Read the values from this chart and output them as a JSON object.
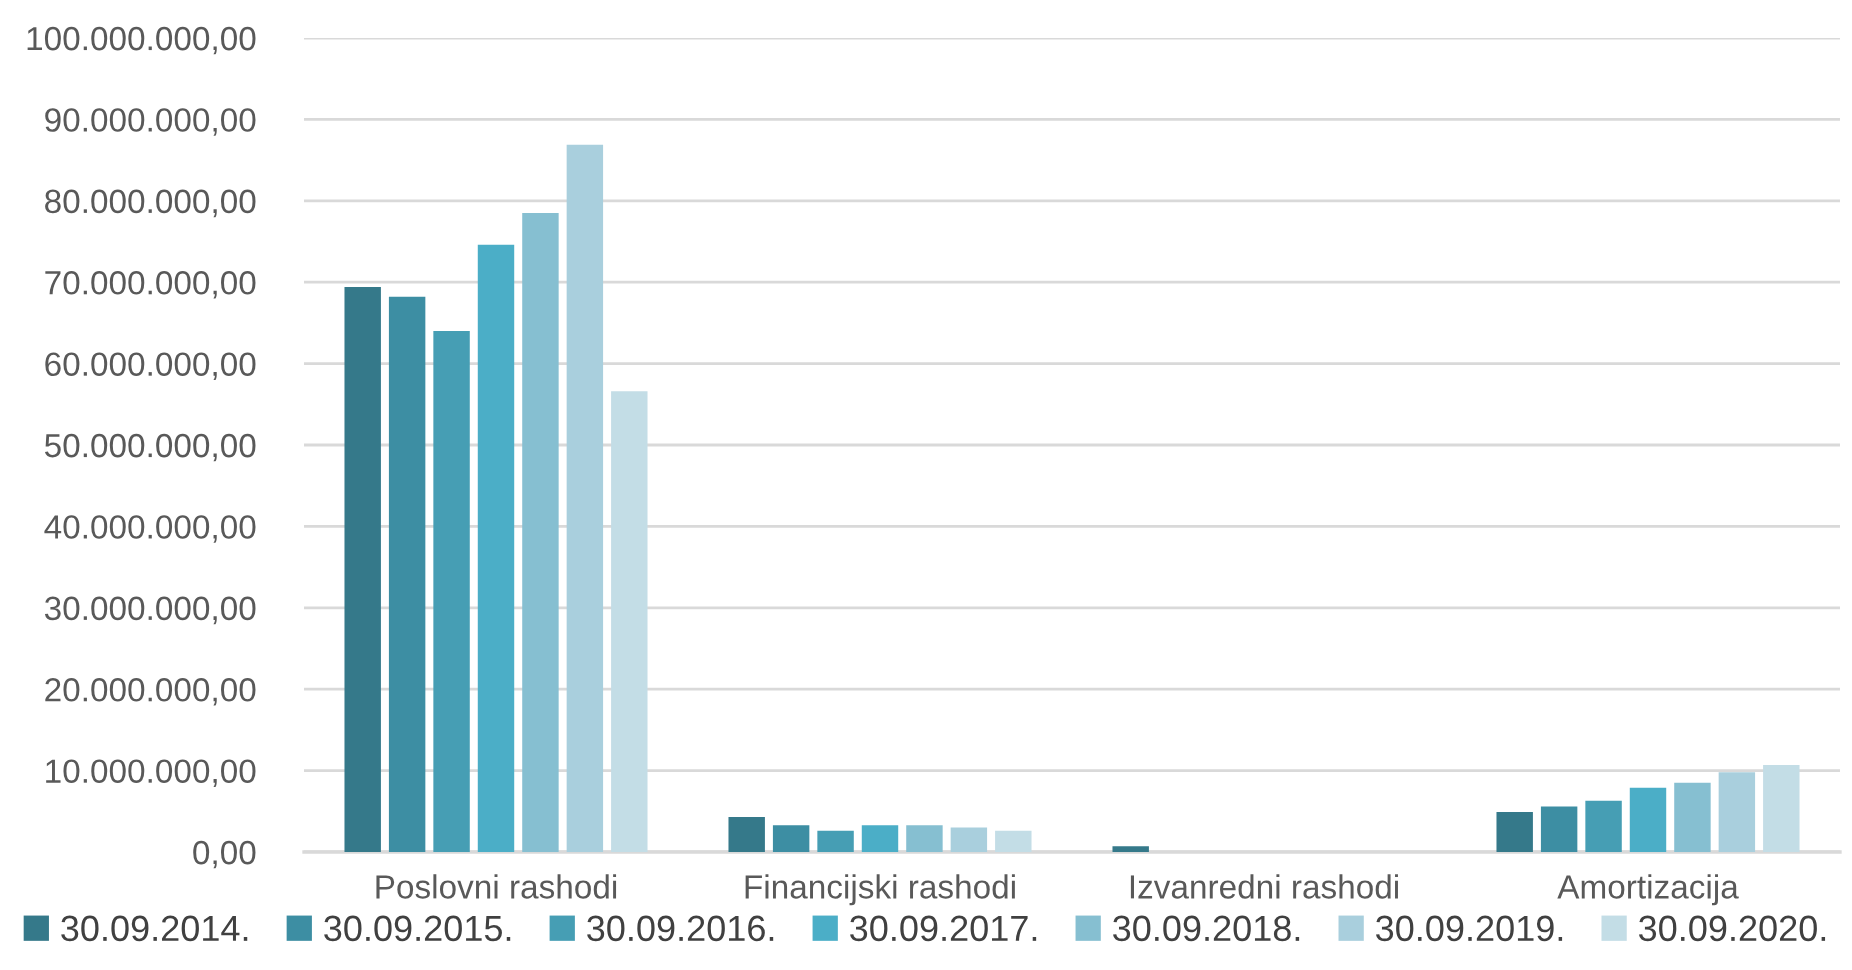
{
  "chart_data": {
    "type": "bar",
    "categories": [
      "Poslovni rashodi",
      "Financijski rashodi",
      "Izvanredni rashodi",
      "Amortizacija"
    ],
    "series": [
      {
        "name": "30.09.2014.",
        "color": "#35798a",
        "values": [
          69400000,
          4300000,
          700000,
          4900000
        ]
      },
      {
        "name": "30.09.2015.",
        "color": "#3d8ea3",
        "values": [
          68200000,
          3300000,
          null,
          5600000
        ]
      },
      {
        "name": "30.09.2016.",
        "color": "#469eb4",
        "values": [
          64000000,
          2600000,
          null,
          6300000
        ]
      },
      {
        "name": "30.09.2017.",
        "color": "#4baec7",
        "values": [
          74600000,
          3300000,
          null,
          7900000
        ]
      },
      {
        "name": "30.09.2018.",
        "color": "#86bfd1",
        "values": [
          78500000,
          3300000,
          null,
          8500000
        ]
      },
      {
        "name": "30.09.2019.",
        "color": "#a9cfdd",
        "values": [
          86900000,
          3000000,
          null,
          9800000
        ]
      },
      {
        "name": "30.09.2020.",
        "color": "#c3dde6",
        "values": [
          56600000,
          2600000,
          null,
          10700000
        ]
      }
    ],
    "ylim": [
      0,
      100000000
    ],
    "yticks": [
      {
        "value": 0,
        "label": "0,00"
      },
      {
        "value": 10000000,
        "label": "10.000.000,00"
      },
      {
        "value": 20000000,
        "label": "20.000.000,00"
      },
      {
        "value": 30000000,
        "label": "30.000.000,00"
      },
      {
        "value": 40000000,
        "label": "40.000.000,00"
      },
      {
        "value": 50000000,
        "label": "50.000.000,00"
      },
      {
        "value": 60000000,
        "label": "60.000.000,00"
      },
      {
        "value": 70000000,
        "label": "70.000.000,00"
      },
      {
        "value": 80000000,
        "label": "80.000.000,00"
      },
      {
        "value": 90000000,
        "label": "90.000.000,00"
      },
      {
        "value": 100000000,
        "label": "100.000.000,00"
      }
    ],
    "grid": "y",
    "legend": "bottom"
  }
}
